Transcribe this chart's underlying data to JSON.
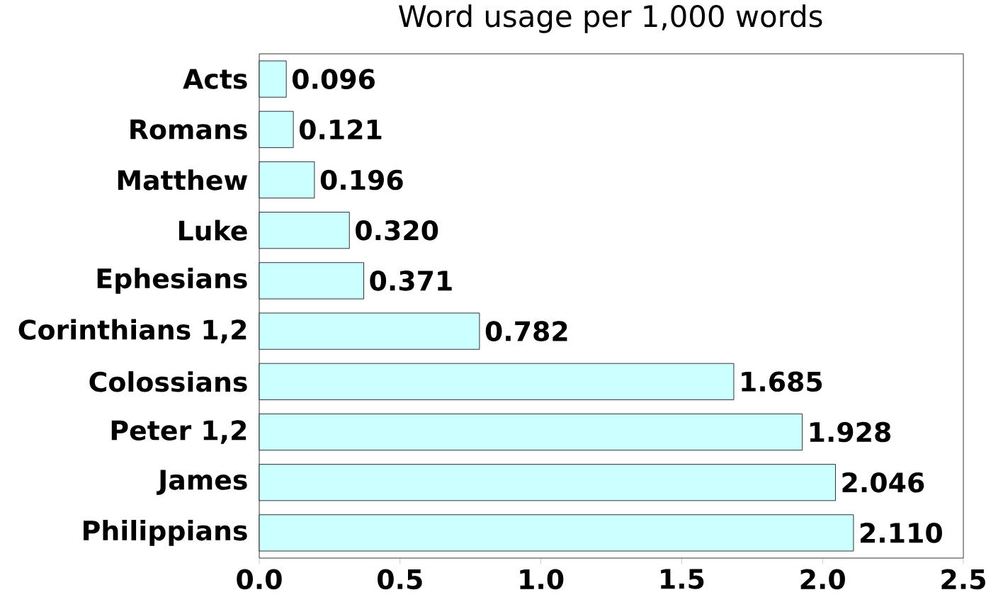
{
  "chart_data": {
    "type": "bar",
    "orientation": "horizontal",
    "title": "Word usage per 1,000 words",
    "categories": [
      "Acts",
      "Romans",
      "Matthew",
      "Luke",
      "Ephesians",
      "Corinthians 1,2",
      "Colossians",
      "Peter 1,2",
      "James",
      "Philippians"
    ],
    "values": [
      0.096,
      0.121,
      0.196,
      0.32,
      0.371,
      0.782,
      1.685,
      1.928,
      2.046,
      2.11
    ],
    "value_labels": [
      "0.096",
      "0.121",
      "0.196",
      "0.320",
      "0.371",
      "0.782",
      "1.685",
      "1.928",
      "2.046",
      "2.110"
    ],
    "color": "#ccffff",
    "xlim": [
      0,
      2.5
    ],
    "xticks": [
      {
        "value": 0,
        "label": "0.0"
      },
      {
        "value": 0.5,
        "label": "0.5"
      },
      {
        "value": 1,
        "label": "1.0"
      },
      {
        "value": 1.5,
        "label": "1.5"
      },
      {
        "value": 2,
        "label": "2.0"
      },
      {
        "value": 2.5,
        "label": "2.5"
      }
    ],
    "grid": false
  }
}
